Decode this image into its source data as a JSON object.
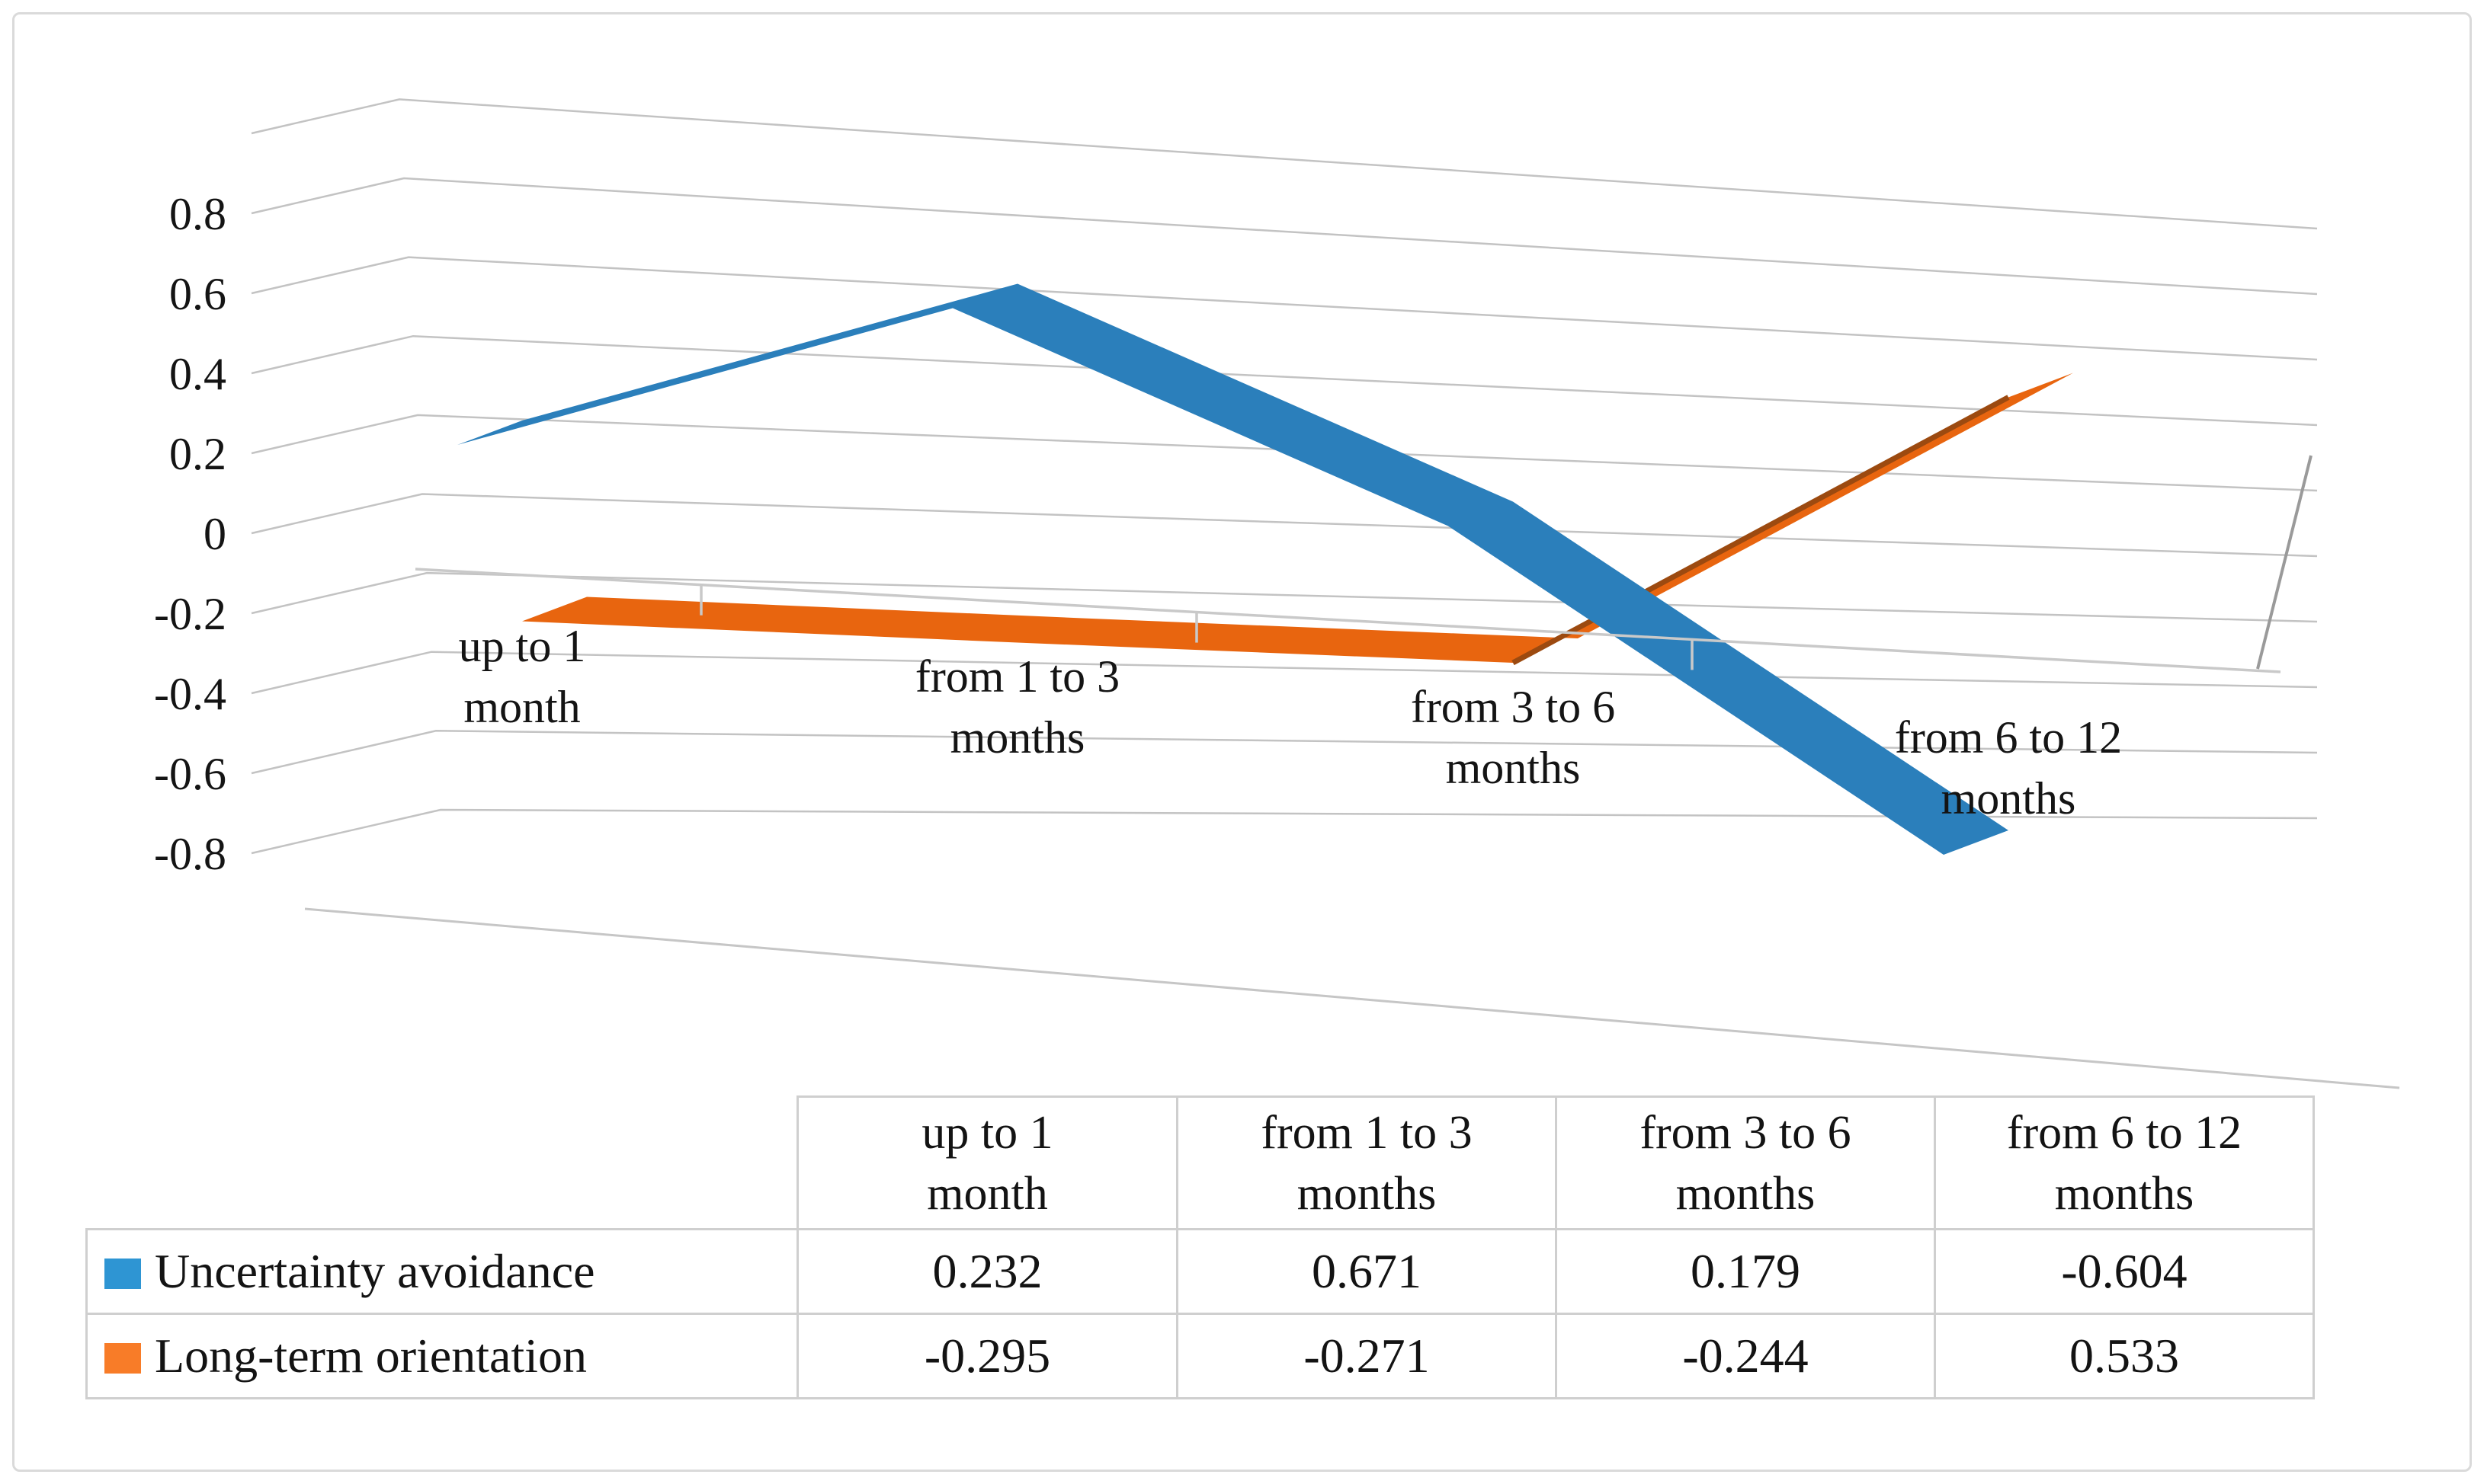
{
  "chart_data": {
    "type": "line",
    "variant": "3d-ribbon",
    "title": "",
    "categories": [
      "up to 1 month",
      "from 1 to 3 months",
      "from 3 to 6 months",
      "from 6 to 12 months"
    ],
    "categories_wrapped": [
      [
        "up to 1",
        "month"
      ],
      [
        "from 1 to 3",
        "months"
      ],
      [
        "from 3 to 6",
        "months"
      ],
      [
        "from 6 to 12",
        "months"
      ]
    ],
    "series": [
      {
        "name": "Uncertainty avoidance",
        "color": "#2B7FBB",
        "legend_color": "#2E95D3",
        "values": [
          0.232,
          0.671,
          0.179,
          -0.604
        ]
      },
      {
        "name": "Long-term orientation",
        "color": "#E8650F",
        "legend_color": "#F87C28",
        "values": [
          -0.295,
          -0.271,
          -0.244,
          0.533
        ]
      }
    ],
    "value_axis": {
      "ticks": [
        0.8,
        0.6,
        0.4,
        0.2,
        0,
        -0.2,
        -0.4,
        -0.6,
        -0.8
      ],
      "max": 0.8,
      "min": -0.8,
      "tick_step": 0.2
    },
    "grid": true,
    "legend_position": "data-table-left"
  }
}
